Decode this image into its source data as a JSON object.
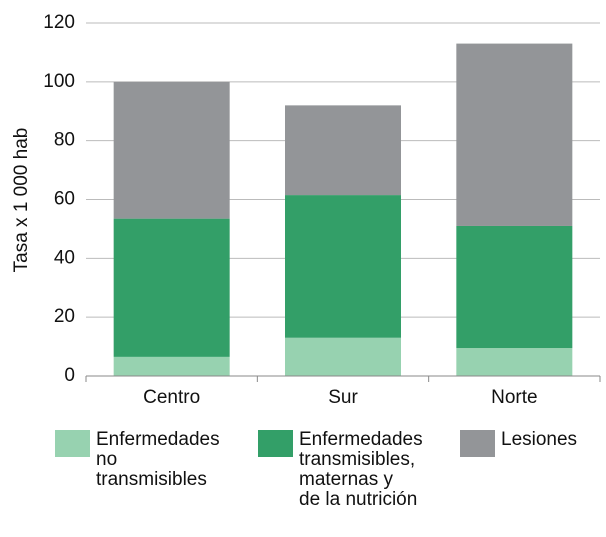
{
  "chart_data": {
    "type": "stacked-bar",
    "y_label": "Tasa x 1 000 hab",
    "categories": [
      "Centro",
      "Sur",
      "Norte"
    ],
    "series": [
      {
        "name": "Enfermedades\nno\ntransmisibles",
        "color": "#97d2b0",
        "values": [
          6.5,
          13,
          9.5
        ]
      },
      {
        "name": "Enfermedades\ntransmisibles,\nmaternas y\nde la nutrición",
        "color": "#339f68",
        "values": [
          47,
          48.5,
          41.5
        ]
      },
      {
        "name": "Lesiones",
        "color": "#939598",
        "values": [
          46.5,
          30.5,
          62
        ]
      }
    ],
    "ylim": [
      0,
      120
    ],
    "yticks": [
      0,
      20,
      40,
      60,
      80,
      100,
      120
    ],
    "grid": true
  }
}
